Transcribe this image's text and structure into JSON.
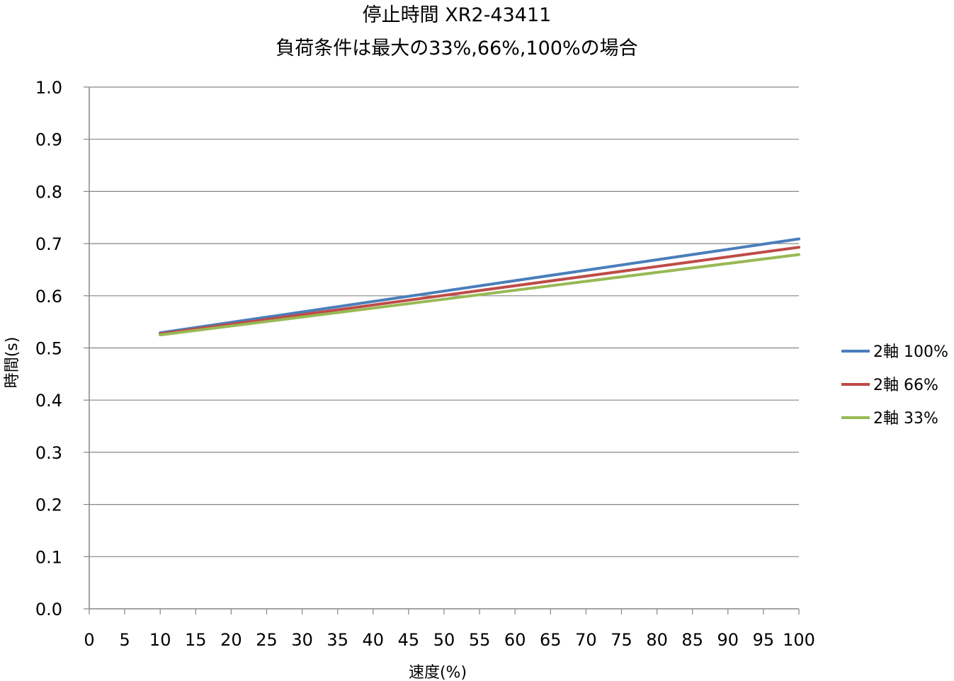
{
  "chart_data": {
    "type": "line",
    "title_line1": "停止時間 XR2-43411",
    "title_line2": "負荷条件は最大の33%,66%,100%の場合",
    "xlabel": "速度(%)",
    "ylabel": "時間(s)",
    "xlim": [
      0,
      100
    ],
    "ylim": [
      0,
      1.0
    ],
    "x_ticks": [
      "0",
      "5",
      "10",
      "15",
      "20",
      "25",
      "30",
      "35",
      "40",
      "45",
      "50",
      "55",
      "60",
      "65",
      "70",
      "75",
      "80",
      "85",
      "90",
      "95",
      "100"
    ],
    "y_ticks": [
      "0.0",
      "0.1",
      "0.2",
      "0.3",
      "0.4",
      "0.5",
      "0.6",
      "0.7",
      "0.8",
      "0.9",
      "1.0"
    ],
    "grid": "horizontal",
    "legend_position": "right",
    "x": [
      10,
      100
    ],
    "series": [
      {
        "name": "2軸 100%",
        "color": "#4a7ebb",
        "values": [
          0.529,
          0.709
        ]
      },
      {
        "name": "2軸 66%",
        "color": "#be4b48",
        "values": [
          0.527,
          0.693
        ]
      },
      {
        "name": "2軸 33%",
        "color": "#98b954",
        "values": [
          0.525,
          0.679
        ]
      }
    ]
  }
}
